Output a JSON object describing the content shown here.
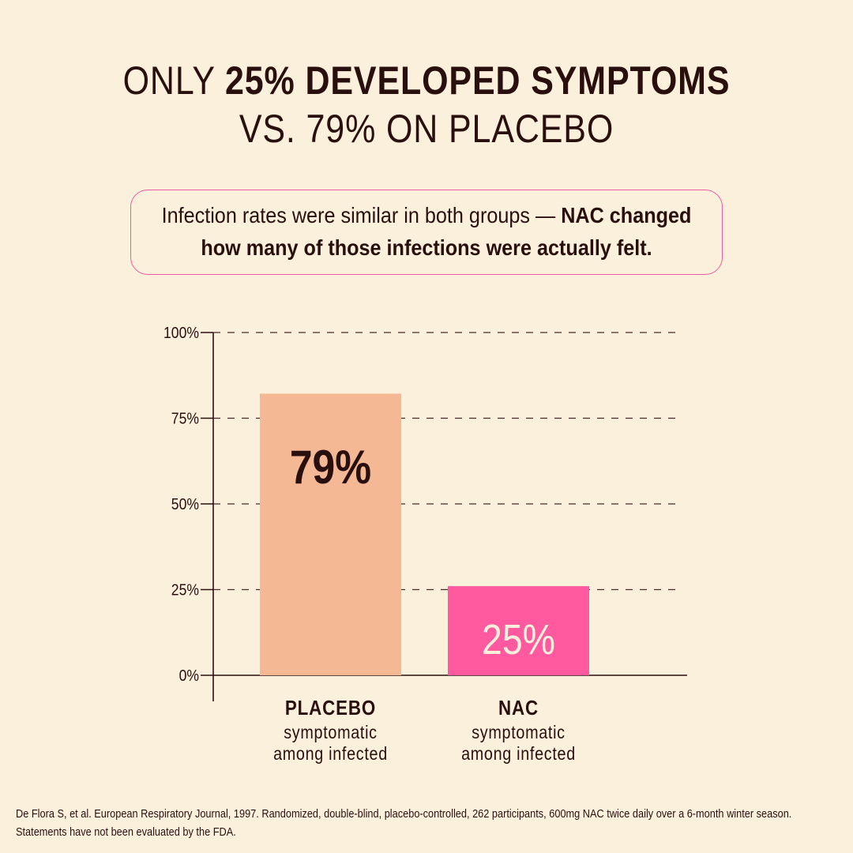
{
  "headline": {
    "line1_regular": "ONLY",
    "line1_bold": "25% DEVELOPED SYMPTOMS",
    "line2": "VS. 79% ON PLACEBO"
  },
  "callout": {
    "regular": "Infection rates were similar in both groups —",
    "bold": "NAC changed how many of those infections were actually felt."
  },
  "chart_data": {
    "type": "bar",
    "categories": [
      "PLACEBO",
      "NAC"
    ],
    "category_sublabels": [
      "symptomatic among infected",
      "symptomatic among infected"
    ],
    "values": [
      79,
      25
    ],
    "data_labels": [
      "79%",
      "25%"
    ],
    "ylim": [
      0,
      100
    ],
    "yticks": [
      0,
      25,
      50,
      75,
      100
    ],
    "ytick_labels": [
      "0%",
      "25%",
      "50%",
      "75%",
      "100%"
    ],
    "grid": "dashed horizontal",
    "colors": [
      "#f4b894",
      "#ff5aa0"
    ],
    "label_colors": [
      "#2a0f0f",
      "#fbf0dc"
    ]
  },
  "footer": {
    "line1": "De Flora S, et al. European Respiratory Journal, 1997. Randomized, double-blind, placebo-controlled, 262 participants, 600mg NAC twice daily over a 6-month winter season.",
    "line2": "Statements have not been evaluated by the FDA."
  }
}
